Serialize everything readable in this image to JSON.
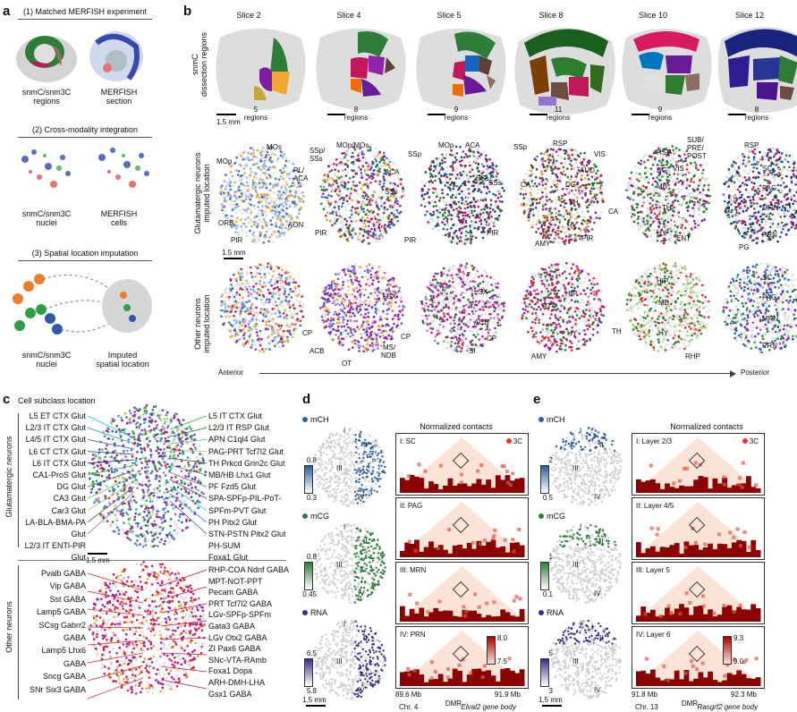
{
  "panel_letters": {
    "a": "a",
    "b": "b",
    "c": "c",
    "d": "d",
    "e": "e"
  },
  "panel_a": {
    "step1": "(1) Matched MERFISH experiment",
    "left_caption": [
      "snmC/snm3C",
      "regions"
    ],
    "right_caption": [
      "MERFISH",
      "section"
    ],
    "step2": "(2) Cross-modality integration",
    "left2_caption": [
      "snmC/snm3C",
      "nuclei"
    ],
    "right2_caption": [
      "MERFISH",
      "cells"
    ],
    "step3": "(3) Spatial location imputation",
    "left3_caption": [
      "snmC/snm3C",
      "nuclei"
    ],
    "right3_caption": [
      "Imputed",
      "spatial location"
    ]
  },
  "panel_b": {
    "slices": [
      "Slice 2",
      "Slice 4",
      "Slice 5",
      "Slice 8",
      "Slice 10",
      "Slice 12"
    ],
    "region_counts": [
      "5",
      "8",
      "9",
      "11",
      "9",
      "8"
    ],
    "regions_word": "regions",
    "scale": "1.5 mm",
    "row1_label": [
      "snmC",
      "dissection regions"
    ],
    "row2_label": [
      "Glutamatergic neurons",
      "imputed location"
    ],
    "row3_label": [
      "Other neurons",
      "imputed location"
    ],
    "axis_left": "Anterior",
    "axis_right": "Posterior",
    "glut_labels": {
      "s2": [
        "MOs",
        "MOp",
        "PL/",
        "ACA",
        "ORB",
        "PIR",
        "AON"
      ],
      "s4": [
        "SSp/",
        "SSs",
        "MOp/MOs",
        "ACA",
        "SSs",
        "PIR"
      ],
      "s5": [
        "SSp",
        "MOp",
        "ACA",
        "SSs",
        "PIR"
      ],
      "s8": [
        "SSp",
        "RSP",
        "SSs",
        "CA",
        "DG",
        "TH",
        "HY",
        "PIR",
        "AMY"
      ],
      "s10": [
        "VIS",
        "RSP",
        "AUD",
        "DG",
        "MB",
        "CA",
        "TH",
        "HY",
        "PIR"
      ],
      "s12": [
        "SUB/",
        "PRE/",
        "POST",
        "RSP",
        "VIS",
        "SC",
        "PAG",
        "MRN",
        "ENT",
        "PG",
        "PRN"
      ]
    },
    "other_labels": {
      "s4": [
        "LSX",
        "CP",
        "ACB",
        "OT",
        "MS/",
        "NDB"
      ],
      "s5": [
        "LSX",
        "CP",
        "ACB",
        "SI"
      ],
      "s8": [
        "HIP",
        "RT",
        "CP",
        "HY",
        "AMY"
      ],
      "s10": [
        "HIP",
        "MB",
        "TH",
        "HY"
      ],
      "s12": [
        "SC",
        "PAG",
        "MRN",
        "PRN",
        "RHP"
      ]
    }
  },
  "panel_c": {
    "title": "Cell subclass location",
    "group1": "Glutamatergic neurons",
    "group2": "Other neurons",
    "scale": "1.5 mm",
    "glut_left": [
      "L5 ET CTX Glut",
      "L2/3 IT CTX Glut",
      "L4/5 IT CTX Glut",
      "L6 CT CTX Glut",
      "L6 IT CTX Glut",
      "CA1-ProS Glut",
      "DG Glut",
      "CA3 Glut",
      "Car3 Glut",
      "LA-BLA-BMA-PA",
      "Glut",
      "L2/3 IT ENTl-PIR",
      "Glut"
    ],
    "glut_right": [
      "L5 IT CTX Glut",
      "L2/3 IT RSP Glut",
      "APN C1ql4 Glut",
      "PAG-PRT Tcf7l2 Glut",
      "TH Prkcd Grin2c Glut",
      "MB/HB Lhx1 Glut",
      "PF Fzd5 Glut",
      "SPA-SPFp-PIL-PoT-",
      "SPFm-PVT Glut",
      "PH Pitx2 Glut",
      "STN-PSTN Pitx2 Glut",
      "PH-SUM",
      "Foxa1 Glut"
    ],
    "other_left": [
      "Pvalb GABA",
      "Vip GABA",
      "Sst GABA",
      "Lamp5 GABA",
      "SCsg Gabrr2",
      "GABA",
      "Lamp5 Lhx6",
      "GABA",
      "Sncg GABA",
      "SNr Six3 GABA"
    ],
    "other_right": [
      "RHP-COA Ndnf GABA",
      "MPT-NOT-PPT",
      "Pecam GABA",
      "PRT Tcf7l2 GABA",
      "LGv-SPFp-SPFm",
      "Gata3 GABA",
      "LGv Otx2 GABA",
      "ZI Pax6 GABA",
      "SNc-VTA-RAmb",
      "Foxa1 Dopa",
      "ARH-DMH-LHA",
      "Gsx1 GABA"
    ]
  },
  "panel_d": {
    "title": "Normalized contacts",
    "tracks": [
      {
        "name": "mCH",
        "max": "0.8",
        "min": "0.3",
        "roman": "I: SC"
      },
      {
        "name": "mCG",
        "max": "0.8",
        "min": "0.45",
        "roman": "II: PAG"
      },
      {
        "name": "RNA",
        "max": "6.5",
        "min": "5.8",
        "roman": "III: MRN"
      }
    ],
    "fourth": "IV: PRN",
    "tag3c": "3C",
    "cbar_max": "8.0",
    "cbar_min": "7.5",
    "romans": [
      "I",
      "II",
      "III",
      "IV"
    ],
    "coord_left": "89.6 Mb",
    "coord_right": "91.9 Mb",
    "chr": "Chr. 4",
    "dmr": "DMR",
    "gene": "Elval2 gene body",
    "scale": "1.5 mm"
  },
  "panel_e": {
    "title": "Normalized contacts",
    "tracks": [
      {
        "name": "mCH",
        "max": "2",
        "min": "0.5",
        "roman": "I: Layer 2/3"
      },
      {
        "name": "mCG",
        "max": "1",
        "min": "0.1",
        "roman": "II: Layer 4/5"
      },
      {
        "name": "RNA",
        "max": "5",
        "min": "3",
        "roman": "III: Layer 5"
      }
    ],
    "fourth": "IV: Layer 6",
    "tag3c": "3C",
    "cbar_max": "9.3",
    "cbar_min": "9.0",
    "romans": [
      "I",
      "II",
      "III",
      "IV"
    ],
    "coord_left": "91.8 Mb",
    "coord_right": "92.3 Mb",
    "chr": "Chr. 13",
    "dmr": "DMR",
    "gene": "Rasgrf2 gene body",
    "scale": "1.5 mm"
  },
  "colors": {
    "hic_dark": "#8b0000",
    "hic_mid": "#e05a4a",
    "hic_light": "#fbe3d8",
    "mch_blue": "#2c5d9e",
    "mcg_green": "#2e7d3a",
    "rna_purple": "#3d2e8c"
  }
}
